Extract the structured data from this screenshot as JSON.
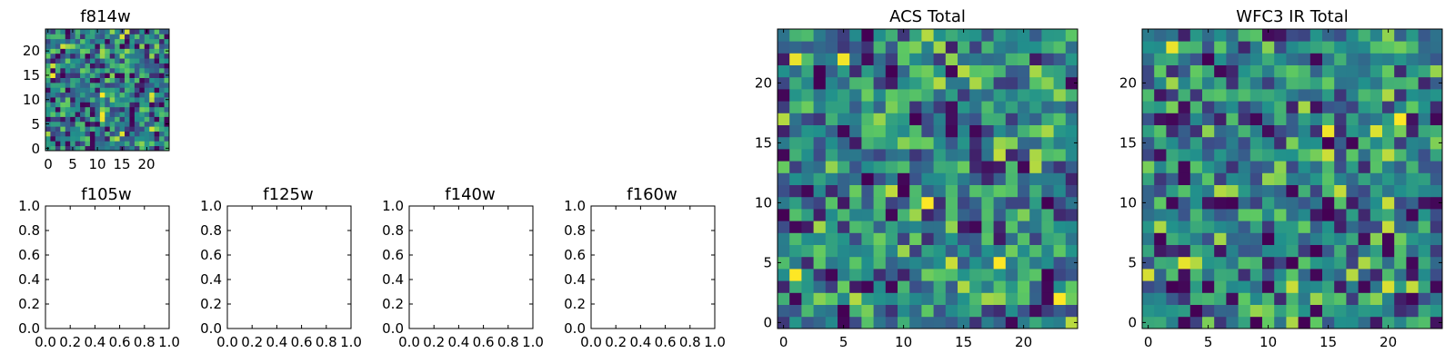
{
  "chart_data": [
    {
      "type": "heatmap",
      "title": "f814w",
      "xlabel": "",
      "ylabel": "",
      "xlim": [
        -0.5,
        24.5
      ],
      "ylim": [
        -0.5,
        24.5
      ],
      "xticks": [
        "0",
        "5",
        "10",
        "15",
        "20"
      ],
      "yticks": [
        "0",
        "5",
        "10",
        "15",
        "20"
      ],
      "grid": false,
      "colormap": "viridis",
      "shape": [
        25,
        25
      ],
      "seed": 3
    },
    {
      "type": "scatter",
      "title": "f105w",
      "xlabel": "",
      "ylabel": "",
      "xlim": [
        0,
        1
      ],
      "ylim": [
        0,
        1
      ],
      "xticks": [
        "0.0",
        "0.2",
        "0.4",
        "0.6",
        "0.8",
        "1.0"
      ],
      "yticks": [
        "0.0",
        "0.2",
        "0.4",
        "0.6",
        "0.8",
        "1.0"
      ],
      "series": [],
      "grid": false
    },
    {
      "type": "scatter",
      "title": "f125w",
      "xlabel": "",
      "ylabel": "",
      "xlim": [
        0,
        1
      ],
      "ylim": [
        0,
        1
      ],
      "xticks": [
        "0.0",
        "0.2",
        "0.4",
        "0.6",
        "0.8",
        "1.0"
      ],
      "yticks": [
        "0.0",
        "0.2",
        "0.4",
        "0.6",
        "0.8",
        "1.0"
      ],
      "series": [],
      "grid": false
    },
    {
      "type": "scatter",
      "title": "f140w",
      "xlabel": "",
      "ylabel": "",
      "xlim": [
        0,
        1
      ],
      "ylim": [
        0,
        1
      ],
      "xticks": [
        "0.0",
        "0.2",
        "0.4",
        "0.6",
        "0.8",
        "1.0"
      ],
      "yticks": [
        "0.0",
        "0.2",
        "0.4",
        "0.6",
        "0.8",
        "1.0"
      ],
      "series": [],
      "grid": false
    },
    {
      "type": "scatter",
      "title": "f160w",
      "xlabel": "",
      "ylabel": "",
      "xlim": [
        0,
        1
      ],
      "ylim": [
        0,
        1
      ],
      "xticks": [
        "0.0",
        "0.2",
        "0.4",
        "0.6",
        "0.8",
        "1.0"
      ],
      "yticks": [
        "0.0",
        "0.2",
        "0.4",
        "0.6",
        "0.8",
        "1.0"
      ],
      "series": [],
      "grid": false
    },
    {
      "type": "heatmap",
      "title": "ACS Total",
      "xlabel": "",
      "ylabel": "",
      "xlim": [
        -0.5,
        24.5
      ],
      "ylim": [
        -0.5,
        24.5
      ],
      "xticks": [
        "0",
        "5",
        "10",
        "15",
        "20"
      ],
      "yticks": [
        "0",
        "5",
        "10",
        "15",
        "20"
      ],
      "grid": false,
      "colormap": "viridis",
      "shape": [
        25,
        25
      ],
      "seed": 11
    },
    {
      "type": "heatmap",
      "title": "WFC3 IR Total",
      "xlabel": "",
      "ylabel": "",
      "xlim": [
        -0.5,
        24.5
      ],
      "ylim": [
        -0.5,
        24.5
      ],
      "xticks": [
        "0",
        "5",
        "10",
        "15",
        "20"
      ],
      "yticks": [
        "0",
        "5",
        "10",
        "15",
        "20"
      ],
      "grid": false,
      "colormap": "viridis",
      "shape": [
        25,
        25
      ],
      "seed": 29
    }
  ]
}
